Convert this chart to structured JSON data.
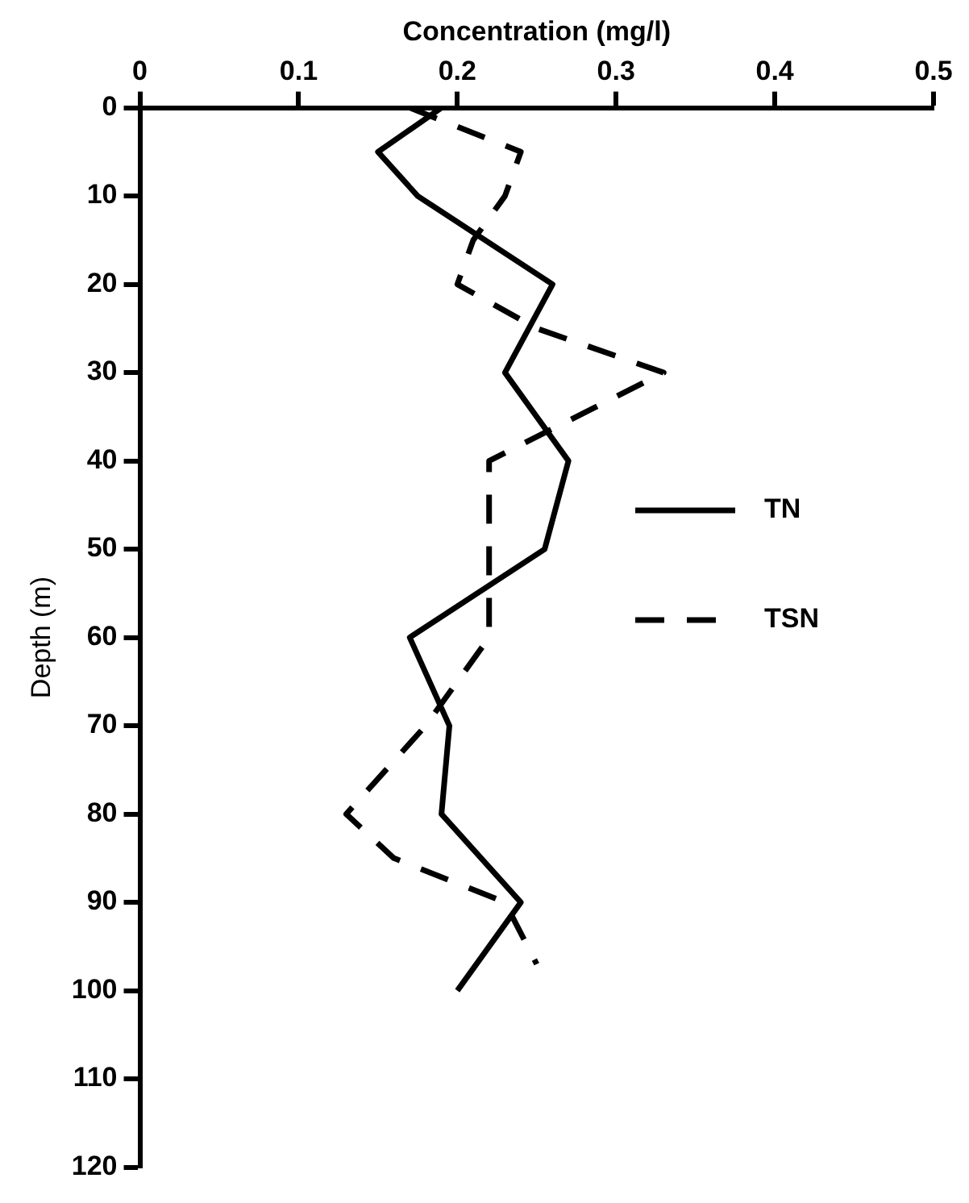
{
  "chart_data": {
    "type": "line",
    "xlabel": "Concentration (mg/l)",
    "ylabel": "Depth (m)",
    "xlim": [
      0,
      0.5
    ],
    "xticks": [
      0,
      0.1,
      0.2,
      0.3,
      0.4,
      0.5
    ],
    "ylim": [
      120,
      0
    ],
    "yticks": [
      0,
      10,
      20,
      30,
      40,
      50,
      60,
      70,
      80,
      90,
      100,
      110,
      120
    ],
    "grid": false,
    "legend": "right",
    "marker": "none",
    "series": [
      {
        "name": "TN",
        "color": "#000000",
        "line_style": "solid",
        "x": [
          0.19,
          0.15,
          0.175,
          0.26,
          0.23,
          0.27,
          0.255,
          0.17,
          0.195,
          0.19,
          0.24,
          0.2
        ],
        "values": [
          0,
          5,
          10,
          20,
          30,
          40,
          50,
          60,
          70,
          80,
          90,
          100
        ]
      },
      {
        "name": "TSN",
        "color": "#000000",
        "line_style": "dashed",
        "x": [
          0.17,
          0.24,
          0.23,
          0.21,
          0.2,
          0.25,
          0.33,
          0.22,
          0.22,
          0.22,
          0.18,
          0.13,
          0.16,
          0.23,
          0.25
        ],
        "values": [
          0,
          5,
          10,
          15,
          20,
          25,
          30,
          40,
          50,
          60,
          70,
          80,
          85,
          90,
          97
        ]
      }
    ]
  }
}
